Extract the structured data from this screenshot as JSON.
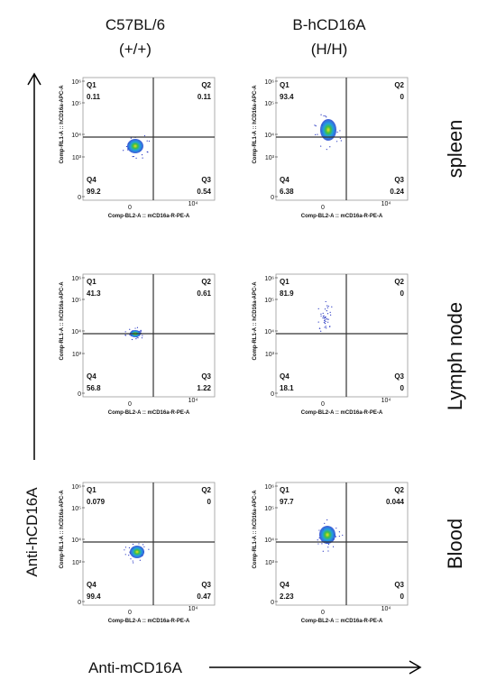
{
  "columns": [
    {
      "title": "C57BL/6",
      "genotype": "(+/+)"
    },
    {
      "title": "B-hCD16A",
      "genotype": "(H/H)"
    }
  ],
  "rows": [
    "spleen",
    "Lymph node",
    "Blood"
  ],
  "y_axis_title": "Anti-hCD16A",
  "x_axis_title": "Anti-mCD16A",
  "plot_axes": {
    "y_label": "Comp-RL1-A :: hCD16a-APC-A",
    "x_label": "Comp-BL2-A :: mCD16a-R-PE-A",
    "y_ticks": [
      "10⁶",
      "10⁵",
      "10⁴",
      "10³",
      "0"
    ],
    "x_ticks": [
      "0",
      "10⁴"
    ]
  },
  "quadrant_names": [
    "Q1",
    "Q2",
    "Q3",
    "Q4"
  ],
  "panels": [
    [
      [
        0.11,
        0.11,
        0.54,
        99.2
      ],
      [
        93.4,
        0,
        0.24,
        6.38
      ]
    ],
    [
      [
        41.3,
        0.61,
        1.22,
        56.8
      ],
      [
        81.9,
        0,
        0,
        18.1
      ]
    ],
    [
      [
        0.079,
        0,
        0.47,
        99.4
      ],
      [
        97.7,
        0.044,
        0,
        2.23
      ]
    ]
  ]
}
